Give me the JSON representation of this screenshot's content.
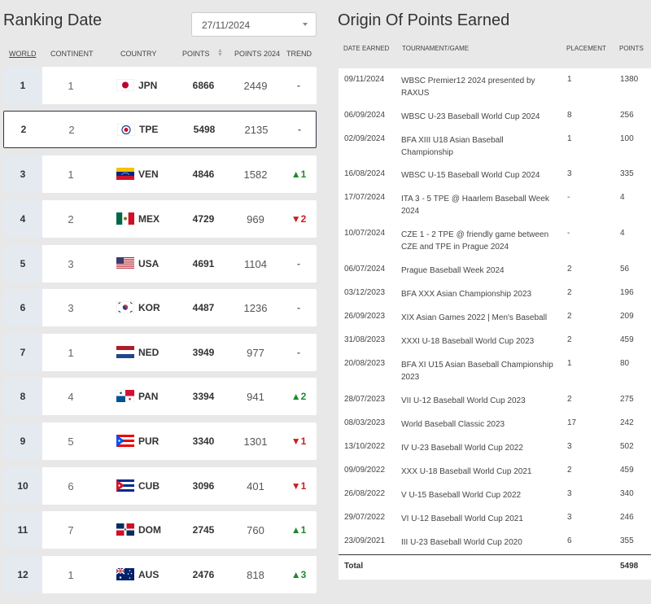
{
  "ranking": {
    "title": "Ranking Date",
    "date_value": "27/11/2024",
    "headers": {
      "world": "WORLD",
      "continent": "CONTINENT",
      "country": "COUNTRY",
      "points": "POINTS",
      "points2024": "POINTS 2024",
      "trend": "TREND"
    },
    "rows": [
      {
        "world": "1",
        "continent": "1",
        "code": "JPN",
        "points": "6866",
        "points2024": "2449",
        "trend": "-",
        "trend_dir": "none"
      },
      {
        "world": "2",
        "continent": "2",
        "code": "TPE",
        "points": "5498",
        "points2024": "2135",
        "trend": "-",
        "trend_dir": "none"
      },
      {
        "world": "3",
        "continent": "1",
        "code": "VEN",
        "points": "4846",
        "points2024": "1582",
        "trend": "▲1",
        "trend_dir": "up"
      },
      {
        "world": "4",
        "continent": "2",
        "code": "MEX",
        "points": "4729",
        "points2024": "969",
        "trend": "▼2",
        "trend_dir": "down"
      },
      {
        "world": "5",
        "continent": "3",
        "code": "USA",
        "points": "4691",
        "points2024": "1104",
        "trend": "-",
        "trend_dir": "none"
      },
      {
        "world": "6",
        "continent": "3",
        "code": "KOR",
        "points": "4487",
        "points2024": "1236",
        "trend": "-",
        "trend_dir": "none"
      },
      {
        "world": "7",
        "continent": "1",
        "code": "NED",
        "points": "3949",
        "points2024": "977",
        "trend": "-",
        "trend_dir": "none"
      },
      {
        "world": "8",
        "continent": "4",
        "code": "PAN",
        "points": "3394",
        "points2024": "941",
        "trend": "▲2",
        "trend_dir": "up"
      },
      {
        "world": "9",
        "continent": "5",
        "code": "PUR",
        "points": "3340",
        "points2024": "1301",
        "trend": "▼1",
        "trend_dir": "down"
      },
      {
        "world": "10",
        "continent": "6",
        "code": "CUB",
        "points": "3096",
        "points2024": "401",
        "trend": "▼1",
        "trend_dir": "down"
      },
      {
        "world": "11",
        "continent": "7",
        "code": "DOM",
        "points": "2745",
        "points2024": "760",
        "trend": "▲1",
        "trend_dir": "up"
      },
      {
        "world": "12",
        "continent": "1",
        "code": "AUS",
        "points": "2476",
        "points2024": "818",
        "trend": "▲3",
        "trend_dir": "up"
      }
    ]
  },
  "origin": {
    "title": "Origin Of Points Earned",
    "headers": {
      "date": "DATE EARNED",
      "tournament": "TOURNAMENT/GAME",
      "placement": "PLACEMENT",
      "points": "POINTS"
    },
    "rows": [
      {
        "date": "09/11/2024",
        "tournament": "WBSC Premier12 2024 presented by RAXUS",
        "placement": "1",
        "points": "1380"
      },
      {
        "date": "06/09/2024",
        "tournament": "WBSC U-23 Baseball World Cup 2024",
        "placement": "8",
        "points": "256"
      },
      {
        "date": "02/09/2024",
        "tournament": "BFA XIII U18 Asian Baseball Championship",
        "placement": "1",
        "points": "100"
      },
      {
        "date": "16/08/2024",
        "tournament": "WBSC U-15 Baseball World Cup 2024",
        "placement": "3",
        "points": "335"
      },
      {
        "date": "17/07/2024",
        "tournament": "ITA 3 - 5 TPE @ Haarlem Baseball Week 2024",
        "placement": "-",
        "points": "4"
      },
      {
        "date": "10/07/2024",
        "tournament": "CZE 1 - 2 TPE @ friendly game between CZE and TPE in Prague 2024",
        "placement": "-",
        "points": "4"
      },
      {
        "date": "06/07/2024",
        "tournament": "Prague Baseball Week 2024",
        "placement": "2",
        "points": "56"
      },
      {
        "date": "03/12/2023",
        "tournament": "BFA XXX Asian Championship 2023",
        "placement": "2",
        "points": "196"
      },
      {
        "date": "26/09/2023",
        "tournament": "XIX Asian Games 2022 | Men's Baseball",
        "placement": "2",
        "points": "209"
      },
      {
        "date": "31/08/2023",
        "tournament": "XXXI U-18 Baseball World Cup 2023",
        "placement": "2",
        "points": "459"
      },
      {
        "date": "20/08/2023",
        "tournament": "BFA XI U15 Asian Baseball Championship 2023",
        "placement": "1",
        "points": "80"
      },
      {
        "date": "28/07/2023",
        "tournament": "VII U-12 Baseball World Cup 2023",
        "placement": "2",
        "points": "275"
      },
      {
        "date": "08/03/2023",
        "tournament": "World Baseball Classic 2023",
        "placement": "17",
        "points": "242"
      },
      {
        "date": "13/10/2022",
        "tournament": "IV U-23 Baseball World Cup 2022",
        "placement": "3",
        "points": "502"
      },
      {
        "date": "09/09/2022",
        "tournament": "XXX U-18 Baseball World Cup 2021",
        "placement": "2",
        "points": "459"
      },
      {
        "date": "26/08/2022",
        "tournament": "V U-15 Baseball World Cup 2022",
        "placement": "3",
        "points": "340"
      },
      {
        "date": "29/07/2022",
        "tournament": "VI U-12 Baseball World Cup 2021",
        "placement": "3",
        "points": "246"
      },
      {
        "date": "23/09/2021",
        "tournament": "III U-23 Baseball World Cup 2020",
        "placement": "6",
        "points": "355"
      }
    ],
    "total_label": "Total",
    "total_value": "5498"
  }
}
